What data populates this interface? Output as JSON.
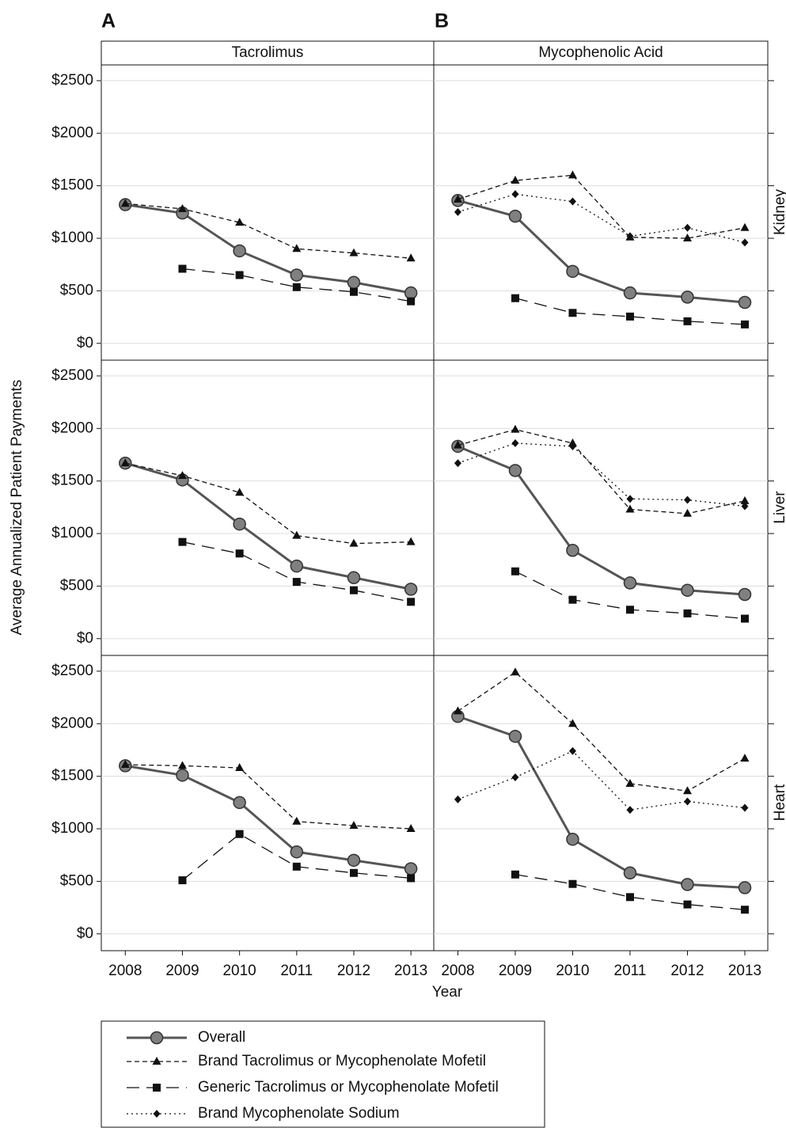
{
  "figure": {
    "panel_labels": [
      "A",
      "B"
    ],
    "columns": [
      "Tacrolimus",
      "Mycophenolic Acid"
    ],
    "rows": [
      "Kidney",
      "Liver",
      "Heart"
    ],
    "ylabel": "Average Annualized Patient Payments",
    "xlabel": "Year"
  },
  "chart_data": [
    {
      "type": "line",
      "x": [
        2008,
        2009,
        2010,
        2011,
        2012,
        2013
      ],
      "xlim": [
        2007.58,
        2013.4
      ],
      "ylim": [
        -160,
        2650
      ],
      "yticks": [
        {
          "value": 0,
          "label": "$0"
        },
        {
          "value": 500,
          "label": "$500"
        },
        {
          "value": 1000,
          "label": "$1000"
        },
        {
          "value": 1500,
          "label": "$1500"
        },
        {
          "value": 2000,
          "label": "$2000"
        },
        {
          "value": 2500,
          "label": "$2500"
        }
      ],
      "grid": true,
      "series": [
        {
          "name": "Overall",
          "color": "#555555",
          "dash": "solid",
          "marker": "circle",
          "values": [
            1320,
            1240,
            880,
            650,
            580,
            480
          ]
        },
        {
          "name": "Brand Tacrolimus or Mycophenolate Mofetil",
          "color": "#111111",
          "dash": "short",
          "marker": "triangle",
          "values": [
            1330,
            1280,
            1150,
            900,
            860,
            810
          ]
        },
        {
          "name": "Generic Tacrolimus or Mycophenolate Mofetil",
          "color": "#111111",
          "dash": "long",
          "marker": "square",
          "values": [
            null,
            710,
            650,
            535,
            490,
            400
          ]
        }
      ]
    },
    {
      "type": "line",
      "x": [
        2008,
        2009,
        2010,
        2011,
        2012,
        2013
      ],
      "xlim": [
        2007.58,
        2013.4
      ],
      "ylim": [
        -160,
        2650
      ],
      "yticks": [
        {
          "value": 0,
          "label": "$0"
        },
        {
          "value": 500,
          "label": "$500"
        },
        {
          "value": 1000,
          "label": "$1000"
        },
        {
          "value": 1500,
          "label": "$1500"
        },
        {
          "value": 2000,
          "label": "$2000"
        },
        {
          "value": 2500,
          "label": "$2500"
        }
      ],
      "grid": true,
      "series": [
        {
          "name": "Overall",
          "color": "#555555",
          "dash": "solid",
          "marker": "circle",
          "values": [
            1360,
            1210,
            685,
            480,
            440,
            390
          ]
        },
        {
          "name": "Brand Tacrolimus or Mycophenolate Mofetil",
          "color": "#111111",
          "dash": "short",
          "marker": "triangle",
          "values": [
            1370,
            1550,
            1600,
            1010,
            1000,
            1100
          ]
        },
        {
          "name": "Generic Tacrolimus or Mycophenolate Mofetil",
          "color": "#111111",
          "dash": "long",
          "marker": "square",
          "values": [
            null,
            430,
            290,
            255,
            210,
            180
          ]
        },
        {
          "name": "Brand Mycophenolate Sodium",
          "color": "#111111",
          "dash": "dotted",
          "marker": "diamond",
          "values": [
            1250,
            1420,
            1350,
            1020,
            1100,
            960
          ]
        }
      ]
    },
    {
      "type": "line",
      "x": [
        2008,
        2009,
        2010,
        2011,
        2012,
        2013
      ],
      "xlim": [
        2007.58,
        2013.4
      ],
      "ylim": [
        -160,
        2650
      ],
      "yticks": [
        {
          "value": 0,
          "label": "$0"
        },
        {
          "value": 500,
          "label": "$500"
        },
        {
          "value": 1000,
          "label": "$1000"
        },
        {
          "value": 1500,
          "label": "$1500"
        },
        {
          "value": 2000,
          "label": "$2000"
        },
        {
          "value": 2500,
          "label": "$2500"
        }
      ],
      "grid": true,
      "series": [
        {
          "name": "Overall",
          "color": "#555555",
          "dash": "solid",
          "marker": "circle",
          "values": [
            1670,
            1510,
            1090,
            690,
            580,
            470
          ]
        },
        {
          "name": "Brand Tacrolimus or Mycophenolate Mofetil",
          "color": "#111111",
          "dash": "short",
          "marker": "triangle",
          "values": [
            1670,
            1550,
            1390,
            980,
            905,
            920
          ]
        },
        {
          "name": "Generic Tacrolimus or Mycophenolate Mofetil",
          "color": "#111111",
          "dash": "long",
          "marker": "square",
          "values": [
            null,
            920,
            810,
            540,
            460,
            350
          ]
        }
      ]
    },
    {
      "type": "line",
      "x": [
        2008,
        2009,
        2010,
        2011,
        2012,
        2013
      ],
      "xlim": [
        2007.58,
        2013.4
      ],
      "ylim": [
        -160,
        2650
      ],
      "yticks": [
        {
          "value": 0,
          "label": "$0"
        },
        {
          "value": 500,
          "label": "$500"
        },
        {
          "value": 1000,
          "label": "$1000"
        },
        {
          "value": 1500,
          "label": "$1500"
        },
        {
          "value": 2000,
          "label": "$2000"
        },
        {
          "value": 2500,
          "label": "$2500"
        }
      ],
      "grid": true,
      "series": [
        {
          "name": "Overall",
          "color": "#555555",
          "dash": "solid",
          "marker": "circle",
          "values": [
            1830,
            1600,
            840,
            530,
            460,
            420
          ]
        },
        {
          "name": "Brand Tacrolimus or Mycophenolate Mofetil",
          "color": "#111111",
          "dash": "short",
          "marker": "triangle",
          "values": [
            1840,
            1990,
            1860,
            1230,
            1190,
            1310
          ]
        },
        {
          "name": "Generic Tacrolimus or Mycophenolate Mofetil",
          "color": "#111111",
          "dash": "long",
          "marker": "square",
          "values": [
            null,
            640,
            370,
            275,
            240,
            190
          ]
        },
        {
          "name": "Brand Mycophenolate Sodium",
          "color": "#111111",
          "dash": "dotted",
          "marker": "diamond",
          "values": [
            1670,
            1860,
            1830,
            1330,
            1320,
            1260
          ]
        }
      ]
    },
    {
      "type": "line",
      "x": [
        2008,
        2009,
        2010,
        2011,
        2012,
        2013
      ],
      "xlim": [
        2007.58,
        2013.4
      ],
      "ylim": [
        -160,
        2650
      ],
      "yticks": [
        {
          "value": 0,
          "label": "$0"
        },
        {
          "value": 500,
          "label": "$500"
        },
        {
          "value": 1000,
          "label": "$1000"
        },
        {
          "value": 1500,
          "label": "$1500"
        },
        {
          "value": 2000,
          "label": "$2000"
        },
        {
          "value": 2500,
          "label": "$2500"
        }
      ],
      "grid": true,
      "series": [
        {
          "name": "Overall",
          "color": "#555555",
          "dash": "solid",
          "marker": "circle",
          "values": [
            1600,
            1510,
            1250,
            780,
            700,
            620
          ]
        },
        {
          "name": "Brand Tacrolimus or Mycophenolate Mofetil",
          "color": "#111111",
          "dash": "short",
          "marker": "triangle",
          "values": [
            1610,
            1600,
            1580,
            1070,
            1030,
            1000
          ]
        },
        {
          "name": "Generic Tacrolimus or Mycophenolate Mofetil",
          "color": "#111111",
          "dash": "long",
          "marker": "square",
          "values": [
            null,
            510,
            950,
            640,
            580,
            530
          ]
        }
      ]
    },
    {
      "type": "line",
      "x": [
        2008,
        2009,
        2010,
        2011,
        2012,
        2013
      ],
      "xlim": [
        2007.58,
        2013.4
      ],
      "ylim": [
        -160,
        2650
      ],
      "yticks": [
        {
          "value": 0,
          "label": "$0"
        },
        {
          "value": 500,
          "label": "$500"
        },
        {
          "value": 1000,
          "label": "$1000"
        },
        {
          "value": 1500,
          "label": "$1500"
        },
        {
          "value": 2000,
          "label": "$2000"
        },
        {
          "value": 2500,
          "label": "$2500"
        }
      ],
      "grid": true,
      "series": [
        {
          "name": "Overall",
          "color": "#555555",
          "dash": "solid",
          "marker": "circle",
          "values": [
            2070,
            1880,
            900,
            580,
            470,
            440
          ]
        },
        {
          "name": "Brand Tacrolimus or Mycophenolate Mofetil",
          "color": "#111111",
          "dash": "short",
          "marker": "triangle",
          "values": [
            2120,
            2490,
            2000,
            1430,
            1360,
            1670
          ]
        },
        {
          "name": "Generic Tacrolimus or Mycophenolate Mofetil",
          "color": "#111111",
          "dash": "long",
          "marker": "square",
          "values": [
            null,
            565,
            475,
            350,
            280,
            230
          ]
        },
        {
          "name": "Brand Mycophenolate Sodium",
          "color": "#111111",
          "dash": "dotted",
          "marker": "diamond",
          "values": [
            1280,
            1490,
            1740,
            1180,
            1260,
            1200
          ]
        }
      ]
    }
  ]
}
